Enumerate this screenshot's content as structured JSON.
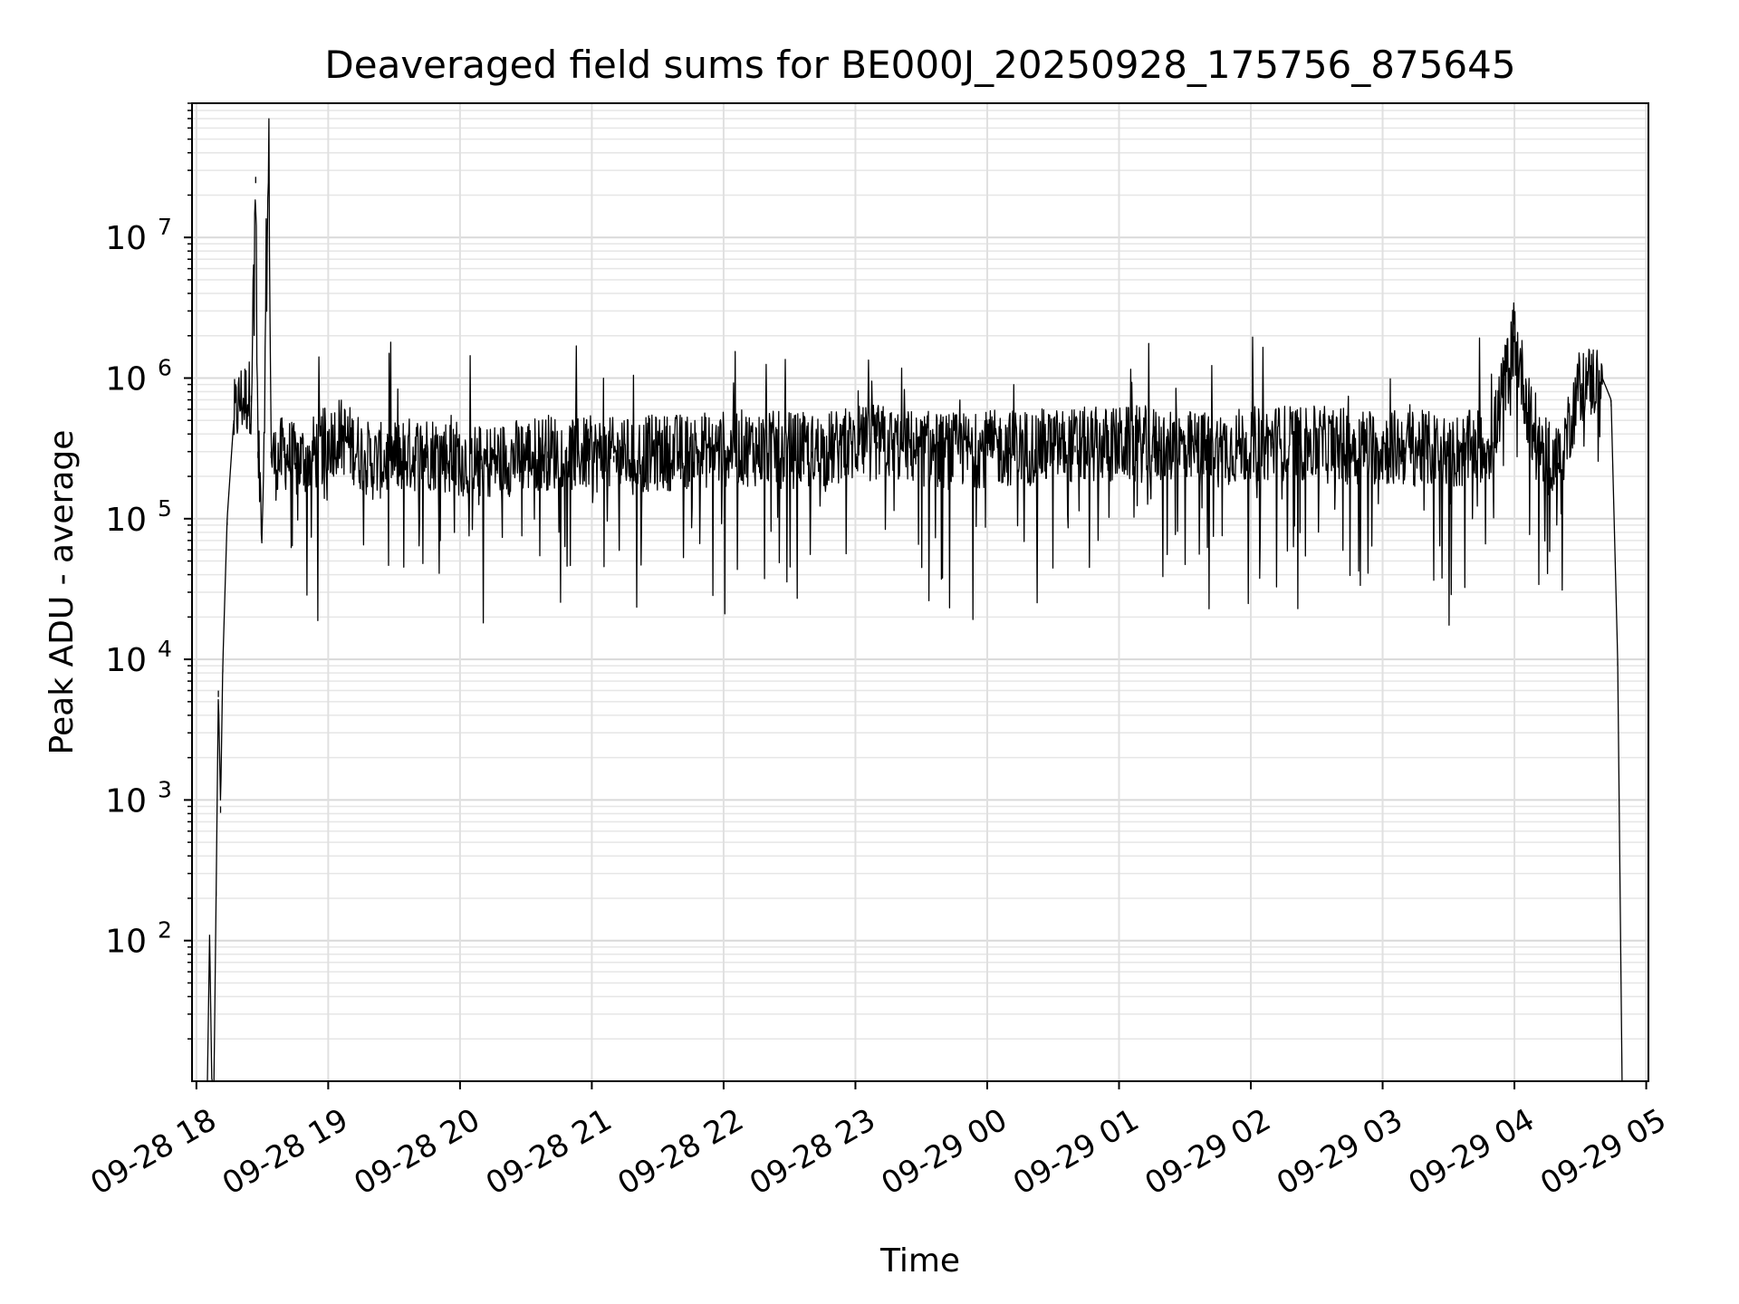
{
  "chart_data": {
    "type": "line",
    "title": "Deaveraged field sums for BE000J_20250928_175756_875645",
    "xlabel": "Time",
    "ylabel": "Peak ADU - average",
    "yscale": "log",
    "grid": true,
    "ylim": [
      10,
      90000000
    ],
    "xlim": [
      "2025-09-28 17:58",
      "2025-09-29 05:01"
    ],
    "x_ticks": [
      "09-28 18",
      "09-28 19",
      "09-28 20",
      "09-28 21",
      "09-28 22",
      "09-28 23",
      "09-29 00",
      "09-29 01",
      "09-29 02",
      "09-29 03",
      "09-29 04",
      "09-29 05"
    ],
    "y_ticks": [
      {
        "base": "10",
        "exp": "2",
        "value": 100
      },
      {
        "base": "10",
        "exp": "3",
        "value": 1000
      },
      {
        "base": "10",
        "exp": "4",
        "value": 10000
      },
      {
        "base": "10",
        "exp": "5",
        "value": 100000
      },
      {
        "base": "10",
        "exp": "6",
        "value": 1000000
      },
      {
        "base": "10",
        "exp": "7",
        "value": 10000000
      }
    ],
    "series": [
      {
        "color": "#000000",
        "x": [
          "2025-09-28 18:05",
          "2025-09-28 18:06",
          "2025-09-28 18:07",
          "2025-09-28 18:08",
          "2025-09-28 18:09",
          "2025-09-28 18:10",
          "2025-09-28 18:11",
          "2025-09-28 18:12",
          "2025-09-28 18:14",
          "2025-09-28 18:17",
          "2025-09-28 18:20",
          "2025-09-28 18:25",
          "2025-09-28 18:27",
          "2025-09-28 18:28",
          "2025-09-28 18:30",
          "2025-09-28 18:33",
          "2025-09-28 18:34",
          "2025-09-28 18:36",
          "2025-09-28 18:40",
          "2025-09-28 18:45",
          "2025-09-28 18:55",
          "2025-09-28 19:05",
          "2025-09-28 19:20",
          "2025-09-28 19:45",
          "2025-09-28 20:10",
          "2025-09-28 20:40",
          "2025-09-28 21:10",
          "2025-09-28 21:40",
          "2025-09-28 22:10",
          "2025-09-28 22:40",
          "2025-09-28 23:10",
          "2025-09-28 23:40",
          "2025-09-29 00:10",
          "2025-09-29 00:40",
          "2025-09-29 01:10",
          "2025-09-29 01:40",
          "2025-09-29 02:10",
          "2025-09-29 02:40",
          "2025-09-29 03:10",
          "2025-09-29 03:35",
          "2025-09-29 03:50",
          "2025-09-29 04:00",
          "2025-09-29 04:10",
          "2025-09-29 04:20",
          "2025-09-29 04:30",
          "2025-09-29 04:40",
          "2025-09-29 04:44",
          "2025-09-29 04:47",
          "2025-09-29 04:49"
        ],
        "y": [
          10,
          110,
          10,
          10,
          230,
          6000,
          900,
          9000,
          100000,
          500000,
          700000,
          750000,
          27000000,
          300000,
          100000,
          42000000,
          300000,
          250000,
          300000,
          250000,
          300000,
          400000,
          250000,
          300000,
          250000,
          300000,
          280000,
          300000,
          320000,
          300000,
          350000,
          300000,
          320000,
          330000,
          340000,
          310000,
          350000,
          330000,
          320000,
          300000,
          350000,
          2000000,
          300000,
          250000,
          900000,
          1000000,
          700000,
          10000,
          10
        ]
      }
    ]
  }
}
